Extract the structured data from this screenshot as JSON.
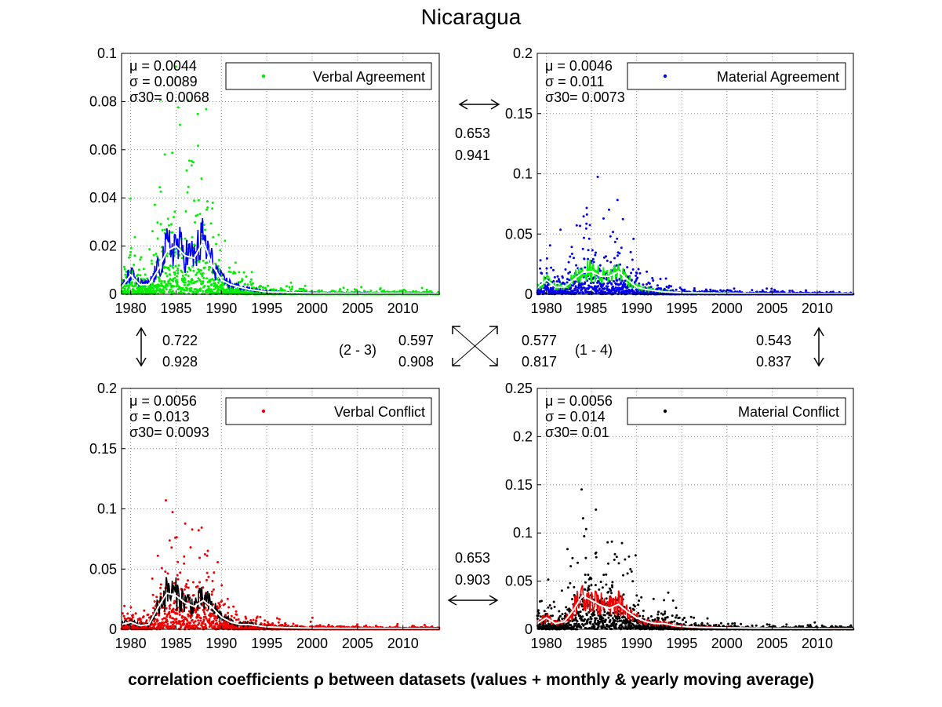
{
  "title": "Nicaragua",
  "footer": "correlation coefficients ρ between datasets (values + monthly & yearly moving average)",
  "colors": {
    "green": "#00ee00",
    "blue": "#0000ee",
    "red": "#ee0000",
    "black": "#000000",
    "ma_monthly_default": "#0000ee",
    "ma_yearly": "#ffffff"
  },
  "chart_data": [
    {
      "type": "scatter",
      "legend": "Verbal Agreement",
      "legend_placement": "top-right",
      "point_color": "#00ee00",
      "monthly_ma_color": "#0000ee",
      "yearly_ma_color": "#ffffff",
      "stats": [
        "μ    = 0.0044",
        "σ    = 0.0089",
        "σ30= 0.0068"
      ],
      "xlim": [
        1979,
        2014
      ],
      "ylim": [
        0,
        0.1
      ],
      "xticks": [
        "1980",
        "1985",
        "1990",
        "1995",
        "2000",
        "2005",
        "2010"
      ],
      "yticks": [
        "0",
        "0.02",
        "0.04",
        "0.06",
        "0.08",
        "0.1"
      ],
      "grid": true,
      "yearly_ma": [
        [
          1979,
          0.003
        ],
        [
          1980,
          0.008
        ],
        [
          1981,
          0.004
        ],
        [
          1982,
          0.004
        ],
        [
          1983,
          0.01
        ],
        [
          1984,
          0.018
        ],
        [
          1985,
          0.02
        ],
        [
          1986,
          0.016
        ],
        [
          1987,
          0.015
        ],
        [
          1988,
          0.022
        ],
        [
          1989,
          0.012
        ],
        [
          1990,
          0.006
        ],
        [
          1991,
          0.004
        ],
        [
          1992,
          0.003
        ],
        [
          1993,
          0.002
        ],
        [
          1994,
          0.0015
        ],
        [
          1995,
          0.001
        ],
        [
          1997,
          0.0008
        ],
        [
          2000,
          0.0005
        ],
        [
          2005,
          0.0004
        ],
        [
          2010,
          0.0004
        ],
        [
          2014,
          0.0003
        ]
      ]
    },
    {
      "type": "scatter",
      "legend": "Material Agreement",
      "legend_placement": "top-right",
      "point_color": "#0000ee",
      "monthly_ma_color": "#00ee00",
      "yearly_ma_color": "#ffffff",
      "stats": [
        "μ    = 0.0046",
        "σ    = 0.011",
        "σ30= 0.0073"
      ],
      "xlim": [
        1979,
        2014
      ],
      "ylim": [
        0,
        0.2
      ],
      "xticks": [
        "1980",
        "1985",
        "1990",
        "1995",
        "2000",
        "2005",
        "2010"
      ],
      "yticks": [
        "0",
        "0.05",
        "0.1",
        "0.15",
        "0.2"
      ],
      "grid": true,
      "yearly_ma": [
        [
          1979,
          0.005
        ],
        [
          1980,
          0.012
        ],
        [
          1981,
          0.006
        ],
        [
          1982,
          0.006
        ],
        [
          1983,
          0.012
        ],
        [
          1984,
          0.018
        ],
        [
          1985,
          0.019
        ],
        [
          1986,
          0.015
        ],
        [
          1987,
          0.015
        ],
        [
          1988,
          0.019
        ],
        [
          1989,
          0.012
        ],
        [
          1990,
          0.006
        ],
        [
          1991,
          0.004
        ],
        [
          1992,
          0.003
        ],
        [
          1993,
          0.002
        ],
        [
          1995,
          0.0012
        ],
        [
          2000,
          0.0008
        ],
        [
          2005,
          0.0006
        ],
        [
          2010,
          0.0005
        ],
        [
          2014,
          0.0004
        ]
      ]
    },
    {
      "type": "scatter",
      "legend": "Verbal Conflict",
      "legend_placement": "top-right",
      "point_color": "#ee0000",
      "monthly_ma_color": "#000000",
      "yearly_ma_color": "#ffffff",
      "stats": [
        "μ    = 0.0056",
        "σ    = 0.013",
        "σ30= 0.0093"
      ],
      "xlim": [
        1979,
        2014
      ],
      "ylim": [
        0,
        0.2
      ],
      "xticks": [
        "1980",
        "1985",
        "1990",
        "1995",
        "2000",
        "2005",
        "2010"
      ],
      "yticks": [
        "0",
        "0.05",
        "0.1",
        "0.15",
        "0.2"
      ],
      "grid": true,
      "yearly_ma": [
        [
          1979,
          0.004
        ],
        [
          1980,
          0.006
        ],
        [
          1981,
          0.003
        ],
        [
          1982,
          0.004
        ],
        [
          1983,
          0.018
        ],
        [
          1984,
          0.03
        ],
        [
          1985,
          0.028
        ],
        [
          1986,
          0.022
        ],
        [
          1987,
          0.019
        ],
        [
          1988,
          0.024
        ],
        [
          1989,
          0.018
        ],
        [
          1990,
          0.01
        ],
        [
          1991,
          0.006
        ],
        [
          1992,
          0.004
        ],
        [
          1993,
          0.004
        ],
        [
          1994,
          0.003
        ],
        [
          1995,
          0.002
        ],
        [
          1997,
          0.0015
        ],
        [
          2000,
          0.001
        ],
        [
          2005,
          0.0008
        ],
        [
          2010,
          0.0007
        ],
        [
          2014,
          0.0006
        ]
      ]
    },
    {
      "type": "scatter",
      "legend": "Material Conflict",
      "legend_placement": "top-right",
      "point_color": "#000000",
      "monthly_ma_color": "#ee0000",
      "yearly_ma_color": "#ffffff",
      "stats": [
        "μ    = 0.0056",
        "σ    = 0.014",
        "σ30= 0.01"
      ],
      "xlim": [
        1979,
        2014
      ],
      "ylim": [
        0,
        0.25
      ],
      "xticks": [
        "1980",
        "1985",
        "1990",
        "1995",
        "2000",
        "2005",
        "2010"
      ],
      "yticks": [
        "0",
        "0.05",
        "0.1",
        "0.15",
        "0.2",
        "0.25"
      ],
      "grid": true,
      "yearly_ma": [
        [
          1979,
          0.006
        ],
        [
          1980,
          0.012
        ],
        [
          1981,
          0.006
        ],
        [
          1982,
          0.008
        ],
        [
          1983,
          0.02
        ],
        [
          1984,
          0.035
        ],
        [
          1985,
          0.03
        ],
        [
          1986,
          0.025
        ],
        [
          1987,
          0.022
        ],
        [
          1988,
          0.026
        ],
        [
          1989,
          0.018
        ],
        [
          1990,
          0.012
        ],
        [
          1991,
          0.008
        ],
        [
          1992,
          0.006
        ],
        [
          1993,
          0.006
        ],
        [
          1994,
          0.004
        ],
        [
          1995,
          0.003
        ],
        [
          1997,
          0.002
        ],
        [
          2000,
          0.0015
        ],
        [
          2005,
          0.001
        ],
        [
          2010,
          0.0008
        ],
        [
          2014,
          0.0007
        ]
      ]
    }
  ],
  "correlations": [
    {
      "pair": "1-2",
      "values": [
        "0.653",
        "0.941"
      ]
    },
    {
      "pair": "1-3",
      "values": [
        "0.722",
        "0.928"
      ]
    },
    {
      "pair": "2-3",
      "label": "(2 - 3)",
      "values": [
        "0.597",
        "0.908"
      ]
    },
    {
      "pair": "1-4",
      "label": "(1 - 4)",
      "values": [
        "0.577",
        "0.817"
      ]
    },
    {
      "pair": "2-4",
      "values": [
        "0.543",
        "0.837"
      ]
    },
    {
      "pair": "3-4",
      "values": [
        "0.653",
        "0.903"
      ]
    }
  ]
}
